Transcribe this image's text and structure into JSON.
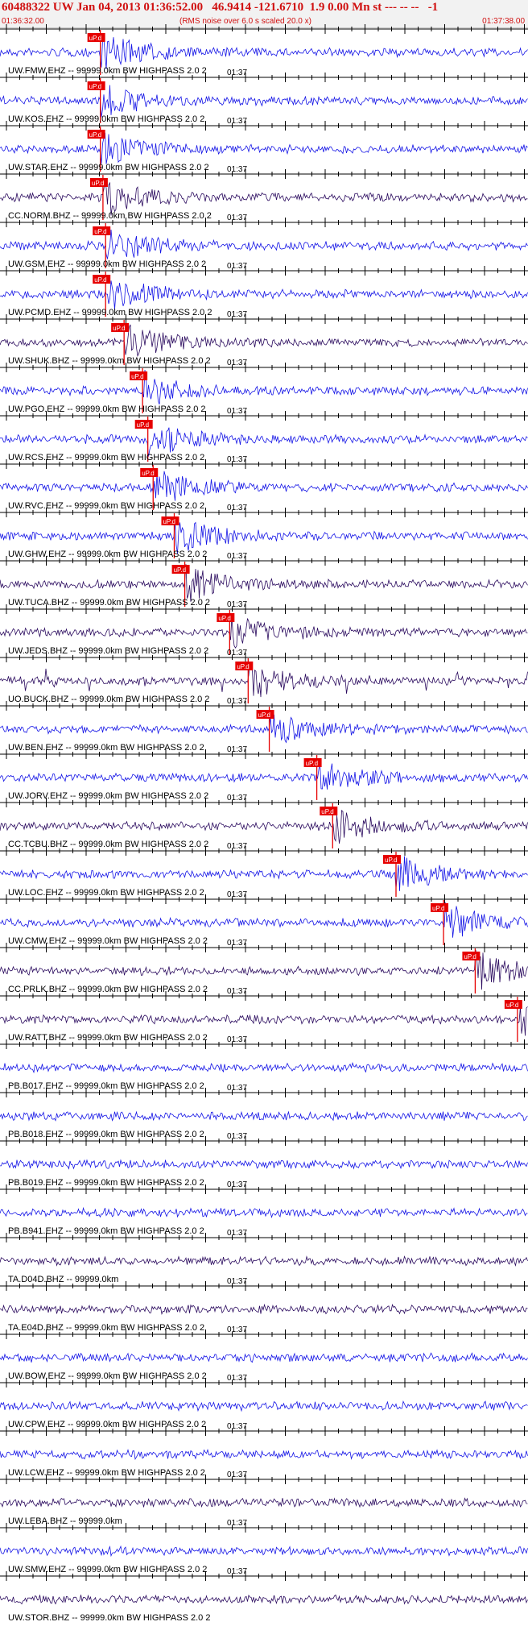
{
  "header": {
    "title": "60488322 UW Jan 04, 2013 01:36:52.00   46.9414 -121.6710  1.9 0.00 Mn st --- -- --   -1",
    "start_time": "01:36:32.00",
    "note": "(RMS noise over 6.0 s scaled 20.0 x)",
    "end_time": "01:37:38.00"
  },
  "tick_label": "01:37",
  "pick_label": "uP.d",
  "colors": {
    "blue": "#1414e6",
    "dark": "#2a0a5e",
    "pick": "#e60000",
    "tick": "#000000"
  },
  "traces": [
    {
      "label": "UW.FMW.EHZ -- 99999.0km BW  HIGHPASS  2.0  2",
      "color": "blue",
      "pick_frac": 0.19
    },
    {
      "label": "UW.KOS.EHZ -- 99999.0km BW  HIGHPASS  2.0  2",
      "color": "blue",
      "pick_frac": 0.19
    },
    {
      "label": "UW.STAR.EHZ -- 99999.0km BW  HIGHPASS  2.0  2",
      "color": "blue",
      "pick_frac": 0.19
    },
    {
      "label": "CC.NORM.BHZ -- 99999.0km BW  HIGHPASS  2.0  2",
      "color": "dark",
      "pick_frac": 0.195
    },
    {
      "label": "UW.GSM.EHZ -- 99999.0km BW  HIGHPASS  2.0  2",
      "color": "blue",
      "pick_frac": 0.2
    },
    {
      "label": "UW.PCMD.EHZ -- 99999.0km BW  HIGHPASS  2.0  2",
      "color": "blue",
      "pick_frac": 0.2
    },
    {
      "label": "UW.SHUK.BHZ -- 99999.0km BW  HIGHPASS  2.0  2",
      "color": "dark",
      "pick_frac": 0.235
    },
    {
      "label": "UW.PGO.EHZ -- 99999.0km BW  HIGHPASS  2.0  2",
      "color": "blue",
      "pick_frac": 0.27
    },
    {
      "label": "UW.RCS.EHZ -- 99999.0km BW  HIGHPASS  2.0  2",
      "color": "blue",
      "pick_frac": 0.28
    },
    {
      "label": "UW.RVC.EHZ -- 99999.0km BW  HIGHPASS  2.0  2",
      "color": "blue",
      "pick_frac": 0.29
    },
    {
      "label": "UW.GHW.EHZ -- 99999.0km BW  HIGHPASS  2.0  2",
      "color": "blue",
      "pick_frac": 0.33
    },
    {
      "label": "UW.TUCA.BHZ -- 99999.0km BW  HIGHPASS  2.0  2",
      "color": "dark",
      "pick_frac": 0.35
    },
    {
      "label": "UW.JEDS.BHZ -- 99999.0km BW  HIGHPASS  2.0  2",
      "color": "dark",
      "pick_frac": 0.435
    },
    {
      "label": "UO.BUCK.BHZ -- 99999.0km BW  HIGHPASS  2.0  2",
      "color": "dark",
      "pick_frac": 0.47
    },
    {
      "label": "UW.BEN.EHZ -- 99999.0km BW  HIGHPASS  2.0  2",
      "color": "blue",
      "pick_frac": 0.51
    },
    {
      "label": "UW.JORV.EHZ -- 99999.0km BW  HIGHPASS  2.0  2",
      "color": "blue",
      "pick_frac": 0.6
    },
    {
      "label": "CC.TCBU.BHZ -- 99999.0km BW  HIGHPASS  2.0  2",
      "color": "dark",
      "pick_frac": 0.63
    },
    {
      "label": "UW.LOC.EHZ -- 99999.0km BW  HIGHPASS  2.0  2",
      "color": "blue",
      "pick_frac": 0.75
    },
    {
      "label": "UW.CMW.EHZ -- 99999.0km BW  HIGHPASS  2.0  2",
      "color": "blue",
      "pick_frac": 0.84
    },
    {
      "label": "CC.PRLK.BHZ -- 99999.0km BW  HIGHPASS  2.0  2",
      "color": "dark",
      "pick_frac": 0.9
    },
    {
      "label": "UW.RATT.BHZ -- 99999.0km BW  HIGHPASS  2.0  2",
      "color": "dark",
      "pick_frac": 0.98
    },
    {
      "label": "PB.B017.EHZ -- 99999.0km BW  HIGHPASS  2.0  2",
      "color": "blue",
      "pick_frac": null
    },
    {
      "label": "PB.B018.EHZ -- 99999.0km BW  HIGHPASS  2.0  2",
      "color": "blue",
      "pick_frac": null
    },
    {
      "label": "PB.B019.EHZ -- 99999.0km BW  HIGHPASS  2.0  2",
      "color": "blue",
      "pick_frac": null
    },
    {
      "label": "PB.B941.EHZ -- 99999.0km BW  HIGHPASS  2.0  2",
      "color": "blue",
      "pick_frac": null
    },
    {
      "label": "TA.D04D.BHZ -- 99999.0km",
      "color": "dark",
      "pick_frac": null
    },
    {
      "label": "TA.E04D.BHZ -- 99999.0km BW  HIGHPASS  2.0  2",
      "color": "dark",
      "pick_frac": null
    },
    {
      "label": "UW.BOW.EHZ -- 99999.0km BW  HIGHPASS  2.0  2",
      "color": "blue",
      "pick_frac": null
    },
    {
      "label": "UW.CPW.EHZ -- 99999.0km BW  HIGHPASS  2.0  2",
      "color": "blue",
      "pick_frac": null
    },
    {
      "label": "UW.LCW.EHZ -- 99999.0km BW  HIGHPASS  2.0  2",
      "color": "blue",
      "pick_frac": null
    },
    {
      "label": "UW.LEBA.BHZ -- 99999.0km",
      "color": "dark",
      "pick_frac": null
    },
    {
      "label": "UW.SMW.EHZ -- 99999.0km BW  HIGHPASS  2.0  2",
      "color": "blue",
      "pick_frac": null
    },
    {
      "label": "UW.STOR.BHZ -- 99999.0km BW  HIGHPASS  2.0  2",
      "color": "dark",
      "pick_frac": null
    }
  ]
}
